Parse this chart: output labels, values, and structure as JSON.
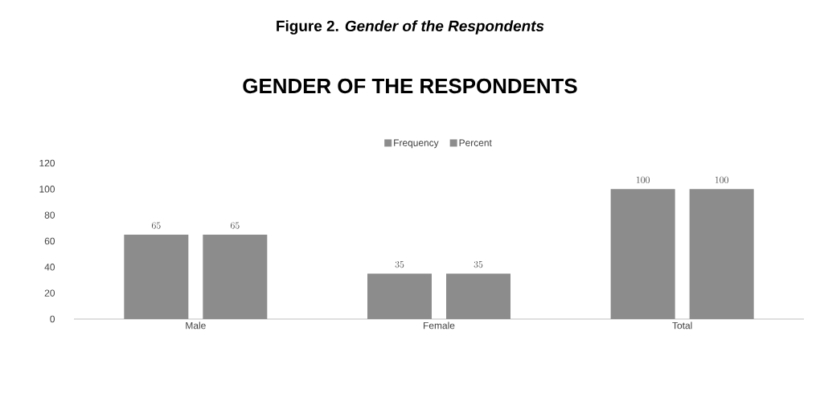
{
  "chart_data": {
    "type": "bar",
    "title": "Figure 2. *Gender of the Respondents*",
    "subtitle": "GENDER OF THE RESPONDENTS",
    "categories": [
      "Male",
      "Female",
      "Total"
    ],
    "series": [
      {
        "name": "Frequency",
        "color": "#8c8c8c",
        "values": [
          65,
          35,
          100
        ]
      },
      {
        "name": "Percent",
        "color": "#8c8c8c",
        "values": [
          65,
          35,
          100
        ]
      }
    ],
    "ylim": [
      0,
      120
    ],
    "yticks": [
      0,
      20,
      40,
      60,
      80,
      100,
      120
    ],
    "grid": false,
    "legend": "top",
    "data_labels": true
  }
}
